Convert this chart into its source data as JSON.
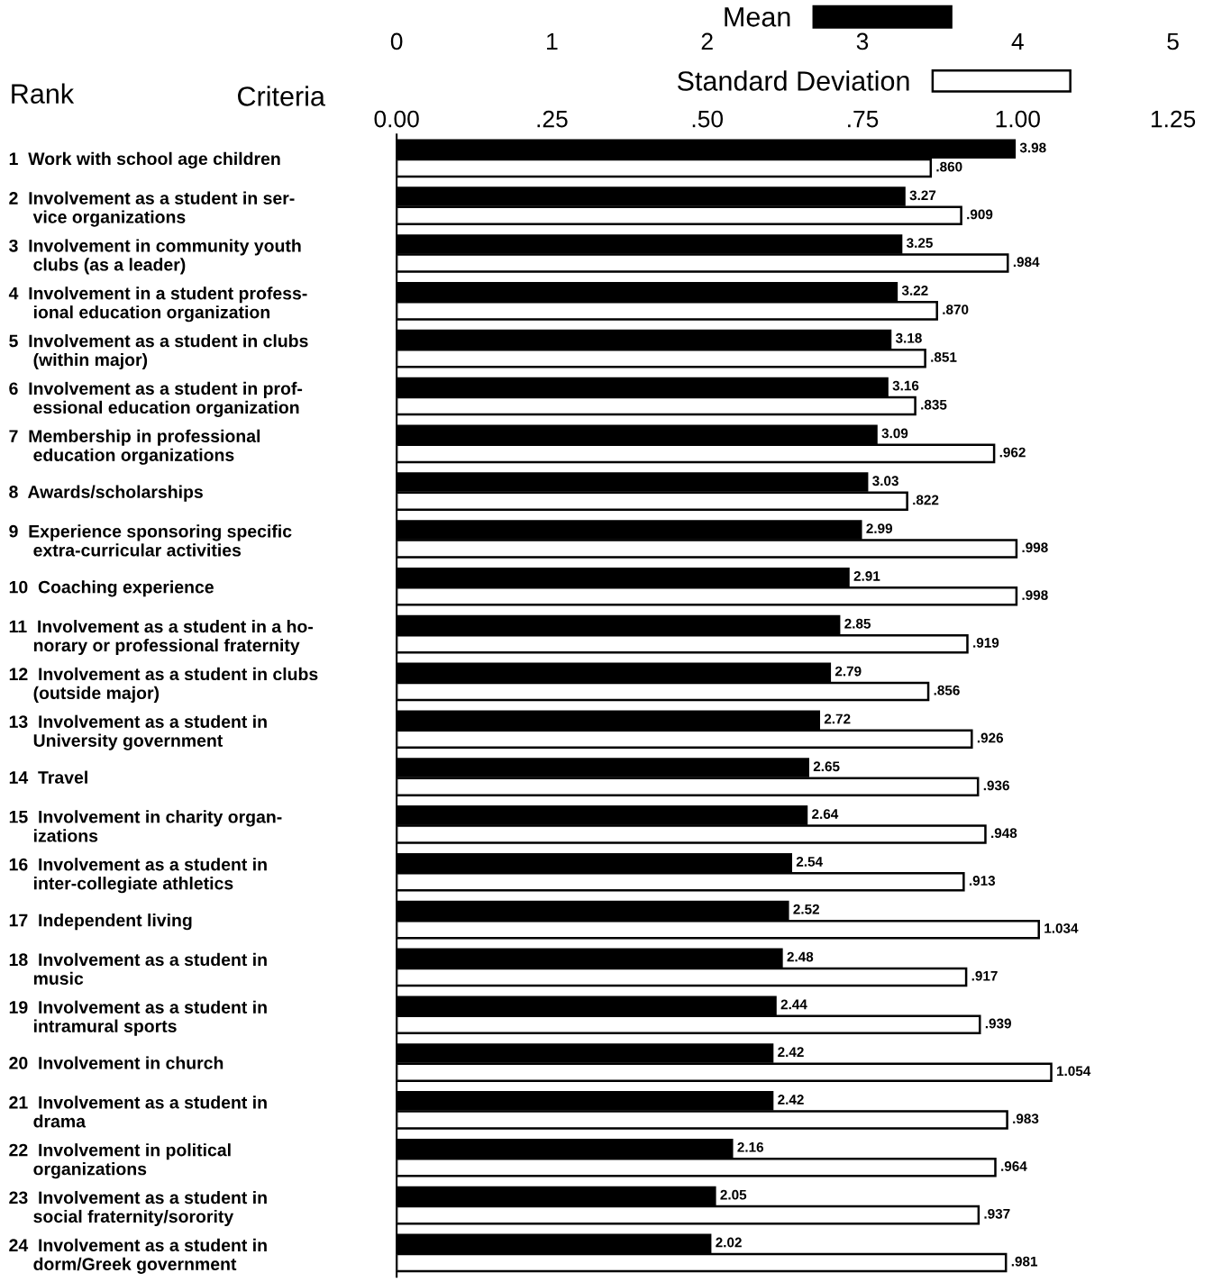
{
  "chart_data": {
    "type": "bar",
    "orientation": "horizontal",
    "categories": [
      "1  Work with school age children",
      "2  Involvement as a student in ser-\n     vice organizations",
      "3  Involvement in community youth\n     clubs (as a leader)",
      "4  Involvement in a student profess-\n     ional education organization",
      "5  Involvement as a student in clubs\n     (within major)",
      "6  Involvement as a student in prof-\n     essional education organization",
      "7  Membership in professional\n     education organizations",
      "8  Awards/scholarships",
      "9  Experience sponsoring specific\n     extra-curricular activities",
      "10  Coaching experience",
      "11  Involvement as a student in a ho-\n     norary or professional fraternity",
      "12  Involvement as a student in clubs\n     (outside major)",
      "13  Involvement as a student in\n     University government",
      "14  Travel",
      "15  Involvement in charity organ-\n     izations",
      "16  Involvement as a student in\n     inter-collegiate athletics",
      "17  Independent living",
      "18  Involvement as a student in\n     music",
      "19  Involvement as a student in\n     intramural sports",
      "20  Involvement in church",
      "21  Involvement as a student in\n     drama",
      "22  Involvement in political\n     organizations",
      "23  Involvement as a student in\n     social fraternity/sorority",
      "24  Involvement as a student in\n     dorm/Greek government"
    ],
    "series": [
      {
        "name": "Mean",
        "color": "#000000",
        "values": [
          3.98,
          3.27,
          3.25,
          3.22,
          3.18,
          3.16,
          3.09,
          3.03,
          2.99,
          2.91,
          2.85,
          2.79,
          2.72,
          2.65,
          2.64,
          2.54,
          2.52,
          2.48,
          2.44,
          2.42,
          2.42,
          2.16,
          2.05,
          2.02
        ],
        "value_labels": [
          "3.98",
          "3.27",
          "3.25",
          "3.22",
          "3.18",
          "3.16",
          "3.09",
          "3.03",
          "2.99",
          "2.91",
          "2.85",
          "2.79",
          "2.72",
          "2.65",
          "2.64",
          "2.54",
          "2.52",
          "2.48",
          "2.44",
          "2.42",
          "2.42",
          "2.16",
          "2.05",
          "2.02"
        ]
      },
      {
        "name": "Standard Deviation",
        "color": "#ffffff",
        "axis": "x2",
        "values": [
          0.86,
          0.909,
          0.984,
          0.87,
          0.851,
          0.835,
          0.962,
          0.822,
          0.998,
          0.998,
          0.919,
          0.856,
          0.926,
          0.936,
          0.948,
          0.913,
          1.034,
          0.917,
          0.939,
          1.054,
          0.983,
          0.964,
          0.937,
          0.981
        ],
        "value_labels": [
          ".860",
          ".909",
          ".984",
          ".870",
          ".851",
          ".835",
          ".962",
          ".822",
          ".998",
          ".998",
          ".919",
          ".856",
          ".926",
          ".936",
          ".948",
          ".913",
          "1.034",
          ".917",
          ".939",
          "1.054",
          ".983",
          ".964",
          ".937",
          ".981"
        ]
      }
    ],
    "xlim": [
      0,
      5
    ],
    "xticks": [
      0,
      1,
      2,
      3,
      4,
      5
    ],
    "x2lim": [
      0,
      1.25
    ],
    "x2ticks": [
      {
        "value": 0,
        "label": "0.00"
      },
      {
        "value": 0.25,
        "label": ".25"
      },
      {
        "value": 0.5,
        "label": ".50"
      },
      {
        "value": 0.75,
        "label": ".75"
      },
      {
        "value": 1.0,
        "label": "1.00"
      },
      {
        "value": 1.25,
        "label": "1.25"
      }
    ],
    "annotations": [
      "Rank",
      "Criteria"
    ],
    "legend": "top",
    "grid": false
  }
}
